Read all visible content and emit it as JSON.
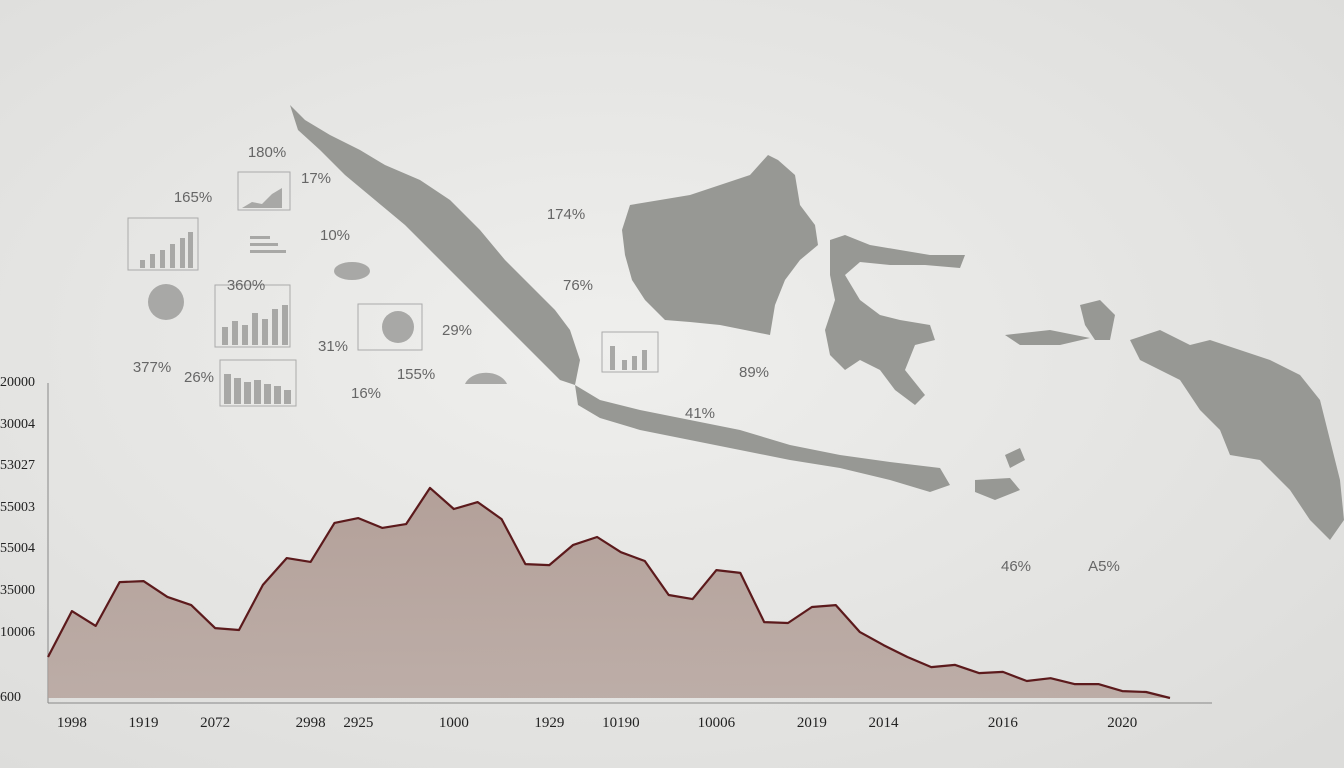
{
  "chart_data": {
    "type": "area",
    "categories": [
      null,
      "1998",
      null,
      null,
      "1919",
      null,
      null,
      "2072",
      null,
      null,
      null,
      "2998",
      null,
      "2925",
      null,
      null,
      null,
      "1000",
      null,
      null,
      null,
      "1929",
      null,
      null,
      "10190",
      null,
      null,
      null,
      "10006",
      null,
      null,
      null,
      "2019",
      null,
      null,
      "2014",
      null,
      null,
      null,
      null,
      "2016",
      null,
      null,
      null,
      null,
      "2020",
      null,
      null
    ],
    "values": [
      13.0,
      27.6,
      22.9,
      36.8,
      37.1,
      32.1,
      29.5,
      22.2,
      21.6,
      35.9,
      44.4,
      43.2,
      55.6,
      57.1,
      54.0,
      55.2,
      66.7,
      60.0,
      62.2,
      56.8,
      42.5,
      42.2,
      48.6,
      51.1,
      46.3,
      43.5,
      32.7,
      31.4,
      40.6,
      39.7,
      24.1,
      23.8,
      28.9,
      29.5,
      21.0,
      16.8,
      13.0,
      9.8,
      10.5,
      7.9,
      8.3,
      5.4,
      6.3,
      4.4,
      4.4,
      2.2,
      1.9,
      0
    ],
    "color": "#5c1a1c",
    "fill": "#b3a099",
    "ylim": [
      0,
      100
    ],
    "y_axis_labels": [
      "20000",
      "30004",
      "53027",
      "55003",
      "55004",
      "35000",
      "10006",
      "600"
    ],
    "annotations": [
      "180%",
      "165%",
      "17%",
      "10%",
      "174%",
      "76%",
      "360%",
      "29%",
      "31%",
      "377%",
      "26%",
      "155%",
      "16%",
      "89%",
      "41%",
      "46%",
      "A5%"
    ]
  }
}
